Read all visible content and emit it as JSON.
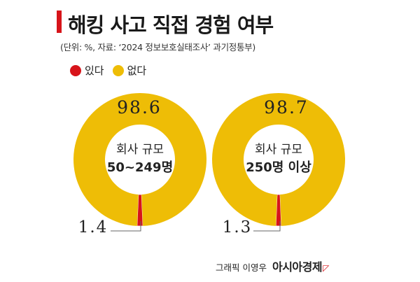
{
  "title": "해킹 사고 직접 경험 여부",
  "subtitle": "(단위: %, 자료: ‘2024 정보보호실태조사’ 과기정통부)",
  "credit": {
    "graphic": "그래픽 이영우",
    "brand": "아시아경제",
    "brand_mark": "◸"
  },
  "colors": {
    "yes": "#d7141a",
    "no": "#eebd06",
    "accent": "#d7141a"
  },
  "chart_data": [
    {
      "type": "pie",
      "title": "회사 규모 50~249명",
      "center_label": [
        "회사 규모",
        "50~249명"
      ],
      "categories": [
        "있다",
        "없다"
      ],
      "values": [
        1.4,
        98.6
      ],
      "data_labels": [
        "1.4",
        "98.6"
      ],
      "legend": [
        "있다",
        "없다"
      ]
    },
    {
      "type": "pie",
      "title": "회사 규모 250명 이상",
      "center_label": [
        "회사 규모",
        "250명 이상"
      ],
      "categories": [
        "있다",
        "없다"
      ],
      "values": [
        1.3,
        98.7
      ],
      "data_labels": [
        "1.3",
        "98.7"
      ],
      "legend": [
        "있다",
        "없다"
      ]
    }
  ]
}
